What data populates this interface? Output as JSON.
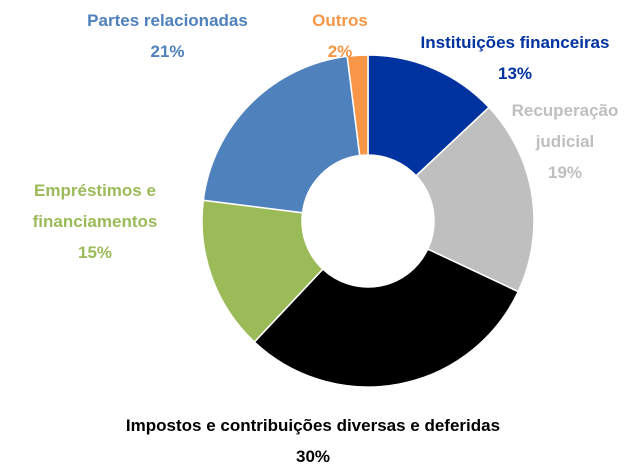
{
  "chart_data": {
    "type": "donut",
    "categories": [
      "Instituições financeiras",
      "Recuperação judicial",
      "Impostos e contribuições diversas e deferidas",
      "Empréstimos e financiamentos",
      "Partes relacionadas",
      "Outros"
    ],
    "values": [
      13,
      19,
      30,
      15,
      21,
      2
    ],
    "value_labels": [
      "13%",
      "19%",
      "30%",
      "15%",
      "21%",
      "2%"
    ],
    "colors": [
      "#0033a0",
      "#bfbfbf",
      "#000000",
      "#9bbb59",
      "#4f81bd",
      "#f79646"
    ],
    "label_colors": [
      "#0033a0",
      "#bfbfbf",
      "#000000",
      "#9bbb59",
      "#4f81bd",
      "#f79646"
    ]
  }
}
